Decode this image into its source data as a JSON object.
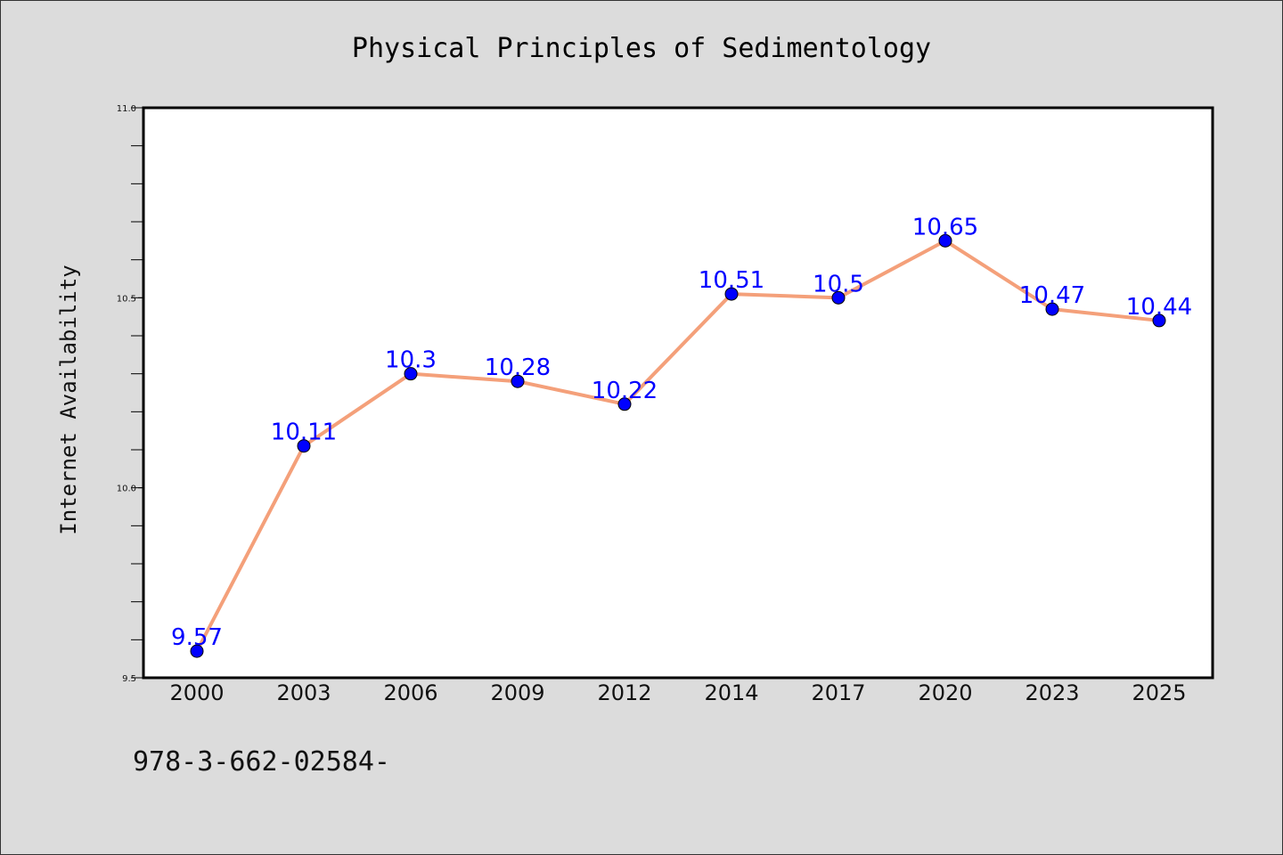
{
  "chart_data": {
    "type": "line",
    "title": "Physical Principles of Sedimentology",
    "xlabel": "",
    "ylabel": "Internet Availability",
    "categories": [
      "2000",
      "2003",
      "2006",
      "2009",
      "2012",
      "2014",
      "2017",
      "2020",
      "2023",
      "2025"
    ],
    "series": [
      {
        "values": [
          9.57,
          10.11,
          10.3,
          10.28,
          10.22,
          10.51,
          10.5,
          10.65,
          10.47,
          10.44
        ],
        "data_labels": [
          "9.57",
          "10.11",
          "10.3",
          "10.28",
          "10.22",
          "10.51",
          "10.5",
          "10.65",
          "10.47",
          "10.44"
        ],
        "line_color": "#f4a07a",
        "marker_color": "#0000ff",
        "label_color": "#0000ff"
      }
    ],
    "ylim": [
      9.5,
      11.0
    ],
    "y_ticks": [
      "9.5",
      "10.0",
      "10.5",
      "11.0"
    ],
    "grid": false,
    "legend": "none"
  },
  "footer": {
    "isbn_text": "978-3-662-02584-"
  },
  "colors": {
    "background": "#dcdcdc",
    "plot_background": "#ffffff",
    "axis": "#000000"
  }
}
